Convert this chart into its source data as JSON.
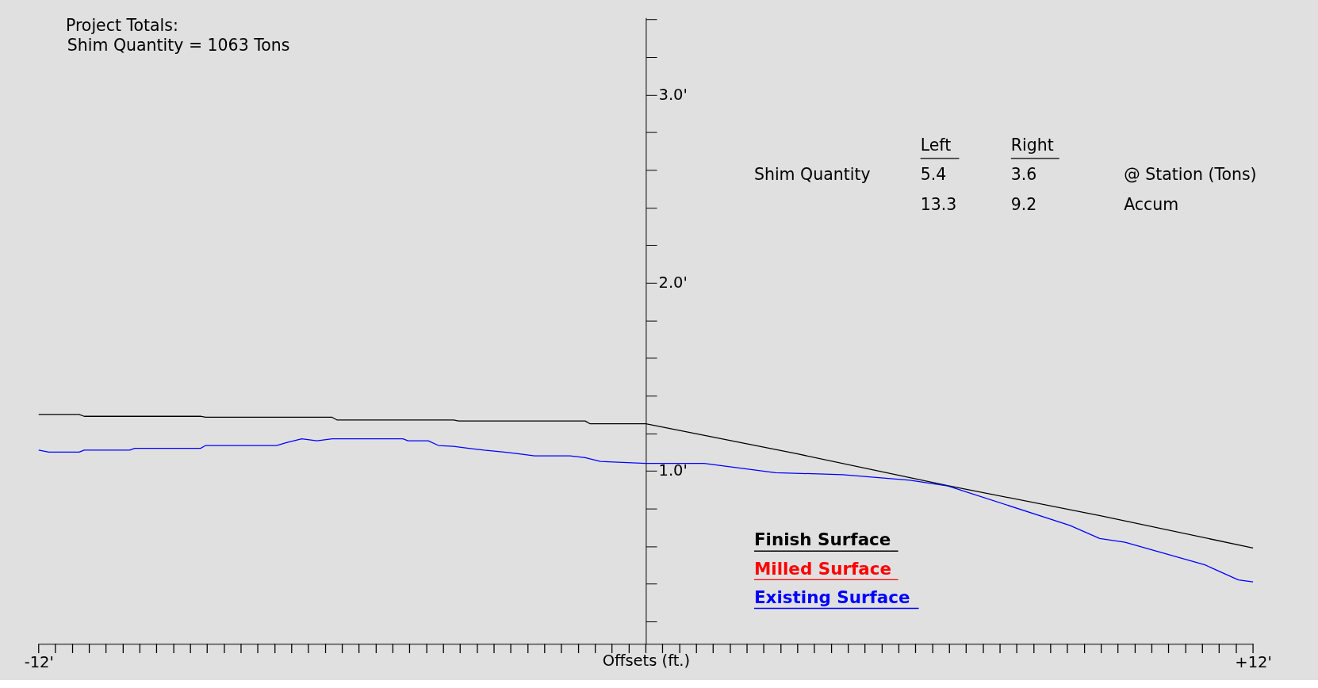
{
  "chart_data": {
    "type": "line",
    "xlabel": "Offsets (ft.)",
    "xlim": [
      -12,
      12
    ],
    "ylim": [
      0.08,
      3.41
    ],
    "xticks": [
      {
        "value": -12,
        "label": "-12'"
      },
      {
        "value": -11.67,
        "label": null
      },
      {
        "value": -11.33,
        "label": null
      },
      {
        "value": -11,
        "label": null
      },
      {
        "value": -10.67,
        "label": null
      },
      {
        "value": -10.33,
        "label": null
      },
      {
        "value": -10,
        "label": null
      },
      {
        "value": -9.67,
        "label": null
      },
      {
        "value": -9.33,
        "label": null
      },
      {
        "value": -9,
        "label": null
      },
      {
        "value": -8.67,
        "label": null
      },
      {
        "value": -8.33,
        "label": null
      },
      {
        "value": -8,
        "label": null
      },
      {
        "value": -7.67,
        "label": null
      },
      {
        "value": -7.33,
        "label": null
      },
      {
        "value": -7,
        "label": null
      },
      {
        "value": -6.67,
        "label": null
      },
      {
        "value": -6.33,
        "label": null
      },
      {
        "value": -6,
        "label": null
      },
      {
        "value": -5.67,
        "label": null
      },
      {
        "value": -5.33,
        "label": null
      },
      {
        "value": -5,
        "label": null
      },
      {
        "value": -4.67,
        "label": null
      },
      {
        "value": -4.33,
        "label": null
      },
      {
        "value": -4,
        "label": null
      },
      {
        "value": -3.67,
        "label": null
      },
      {
        "value": -3.33,
        "label": null
      },
      {
        "value": -3,
        "label": null
      },
      {
        "value": -2.67,
        "label": null
      },
      {
        "value": -2.33,
        "label": null
      },
      {
        "value": -2,
        "label": null
      },
      {
        "value": -1.67,
        "label": null
      },
      {
        "value": -1.33,
        "label": null
      },
      {
        "value": -1,
        "label": null
      },
      {
        "value": -0.67,
        "label": null
      },
      {
        "value": -0.33,
        "label": null
      },
      {
        "value": 0,
        "label": null
      },
      {
        "value": 0.33,
        "label": null
      },
      {
        "value": 0.67,
        "label": null
      },
      {
        "value": 1,
        "label": null
      },
      {
        "value": 1.33,
        "label": null
      },
      {
        "value": 1.67,
        "label": null
      },
      {
        "value": 2,
        "label": null
      },
      {
        "value": 2.33,
        "label": null
      },
      {
        "value": 2.67,
        "label": null
      },
      {
        "value": 3,
        "label": null
      },
      {
        "value": 3.33,
        "label": null
      },
      {
        "value": 3.67,
        "label": null
      },
      {
        "value": 4,
        "label": null
      },
      {
        "value": 4.33,
        "label": null
      },
      {
        "value": 4.67,
        "label": null
      },
      {
        "value": 5,
        "label": null
      },
      {
        "value": 5.33,
        "label": null
      },
      {
        "value": 5.67,
        "label": null
      },
      {
        "value": 6,
        "label": null
      },
      {
        "value": 6.33,
        "label": null
      },
      {
        "value": 6.67,
        "label": null
      },
      {
        "value": 7,
        "label": null
      },
      {
        "value": 7.33,
        "label": null
      },
      {
        "value": 7.67,
        "label": null
      },
      {
        "value": 8,
        "label": null
      },
      {
        "value": 8.33,
        "label": null
      },
      {
        "value": 8.67,
        "label": null
      },
      {
        "value": 9,
        "label": null
      },
      {
        "value": 9.33,
        "label": null
      },
      {
        "value": 9.67,
        "label": null
      },
      {
        "value": 10,
        "label": null
      },
      {
        "value": 10.33,
        "label": null
      },
      {
        "value": 10.67,
        "label": null
      },
      {
        "value": 11,
        "label": null
      },
      {
        "value": 11.33,
        "label": null
      },
      {
        "value": 11.67,
        "label": null
      },
      {
        "value": 12,
        "label": "+12'"
      }
    ],
    "yticks": [
      {
        "value": 0.2,
        "label": null
      },
      {
        "value": 0.4,
        "label": null
      },
      {
        "value": 0.6,
        "label": null
      },
      {
        "value": 0.8,
        "label": null
      },
      {
        "value": 1.0,
        "label": "1.0'"
      },
      {
        "value": 1.2,
        "label": null
      },
      {
        "value": 1.4,
        "label": null
      },
      {
        "value": 1.6,
        "label": null
      },
      {
        "value": 1.8,
        "label": null
      },
      {
        "value": 2.0,
        "label": "2.0'"
      },
      {
        "value": 2.2,
        "label": null
      },
      {
        "value": 2.4,
        "label": null
      },
      {
        "value": 2.6,
        "label": null
      },
      {
        "value": 2.8,
        "label": null
      },
      {
        "value": 3.0,
        "label": "3.0'"
      },
      {
        "value": 3.2,
        "label": null
      },
      {
        "value": 3.4,
        "label": null
      }
    ],
    "series": [
      {
        "name": "Finish Surface",
        "color": "#000000",
        "x": [
          -12,
          -11.2,
          -11.1,
          -8.8,
          -8.7,
          -6.2,
          -6.1,
          -3.8,
          -3.7,
          -1.2,
          -1.1,
          0,
          3,
          6,
          9,
          12
        ],
        "values": [
          1.3,
          1.3,
          1.29,
          1.29,
          1.285,
          1.285,
          1.27,
          1.27,
          1.265,
          1.265,
          1.25,
          1.25,
          1.09,
          0.92,
          0.76,
          0.59
        ]
      },
      {
        "name": "Milled Surface",
        "color": "#ff0000"
      },
      {
        "name": "Existing Surface",
        "color": "#0000ff",
        "x": [
          -12,
          -11.8,
          -11.2,
          -11.1,
          -10.2,
          -10.1,
          -8.8,
          -8.7,
          -7.3,
          -7.1,
          -6.8,
          -6.5,
          -6.2,
          -4.8,
          -4.7,
          -4.3,
          -4.1,
          -3.8,
          -3.5,
          -3.2,
          -2.8,
          -2.5,
          -2.2,
          -1.5,
          -1.2,
          -0.9,
          0,
          1.15,
          2.56,
          3.89,
          5.22,
          5.97,
          8.38,
          8.97,
          9.47,
          11.05,
          11.71,
          12
        ],
        "values": [
          1.11,
          1.1,
          1.1,
          1.11,
          1.11,
          1.12,
          1.12,
          1.135,
          1.135,
          1.15,
          1.17,
          1.16,
          1.17,
          1.17,
          1.16,
          1.16,
          1.135,
          1.13,
          1.12,
          1.11,
          1.1,
          1.09,
          1.08,
          1.08,
          1.07,
          1.05,
          1.04,
          1.04,
          0.99,
          0.98,
          0.95,
          0.92,
          0.71,
          0.64,
          0.62,
          0.5,
          0.42,
          0.41
        ]
      }
    ],
    "legend": "bottom",
    "annotations": [
      "Project Totals:",
      "Shim Quantity = 1063 Tons",
      "Left",
      "Right",
      "Shim Quantity",
      "5.4",
      "3.6",
      "@ Station (Tons)",
      "13.3",
      "9.2",
      "Accum"
    ]
  }
}
